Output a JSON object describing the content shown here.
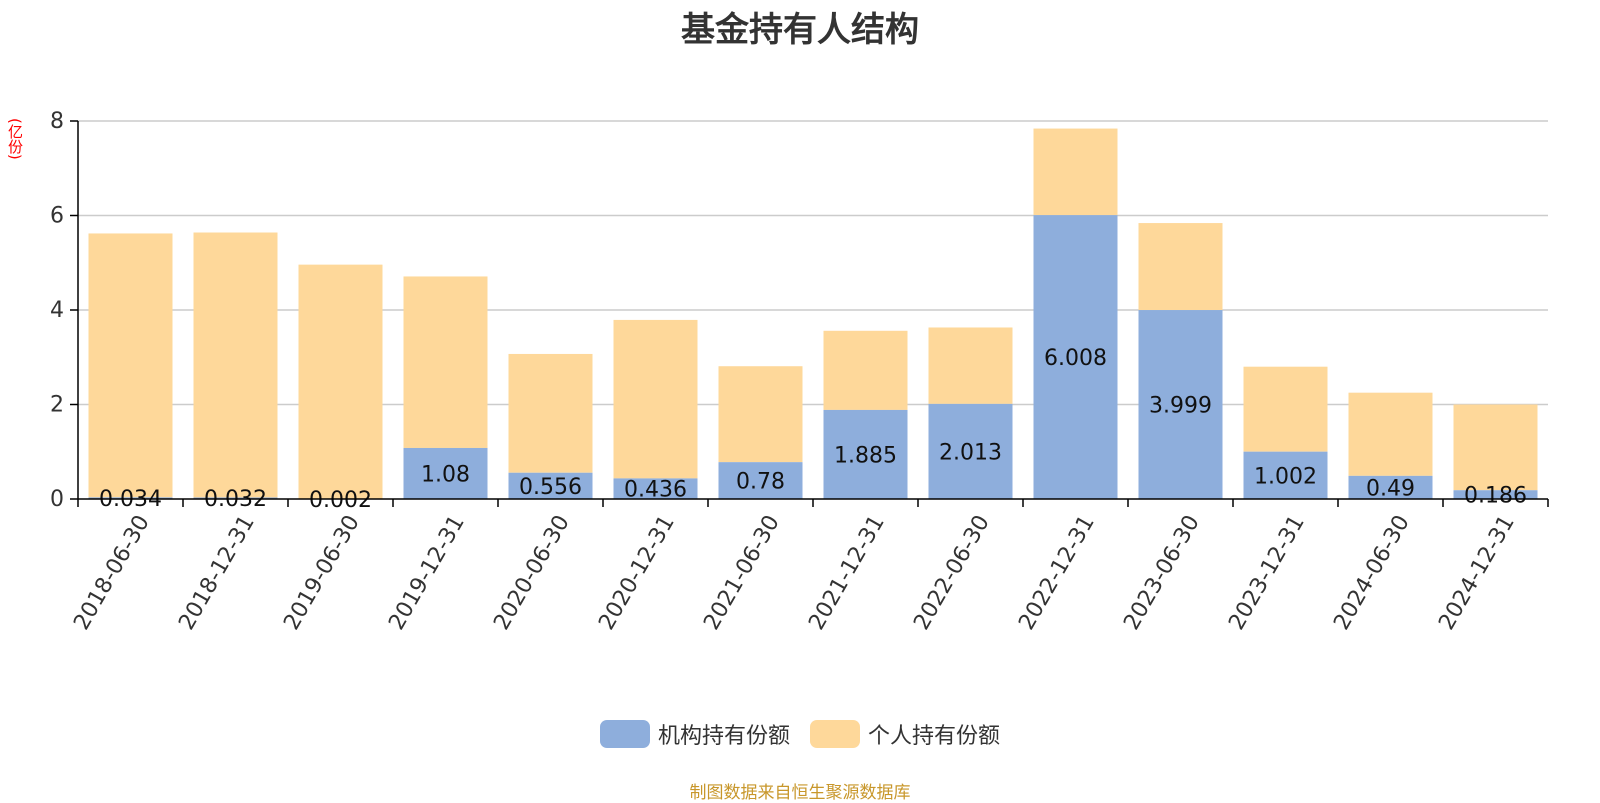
{
  "title": "基金持有人结构",
  "unit_label": "(亿份)",
  "source": "制图数据来自恒生聚源数据库",
  "colors": {
    "institutional": "#8eaedc",
    "individual": "#fed89a",
    "grid": "#cccccc",
    "axis": "#000000"
  },
  "chart_data": {
    "type": "bar",
    "stacked": true,
    "title": "基金持有人结构",
    "ylabel": "(亿份)",
    "ylim": [
      0,
      8
    ],
    "yticks": [
      "0",
      "2",
      "4",
      "6",
      "8"
    ],
    "grid": true,
    "legend_position": "bottom",
    "categories": [
      "2018-06-30",
      "2018-12-31",
      "2019-06-30",
      "2019-12-31",
      "2020-06-30",
      "2020-12-31",
      "2021-06-30",
      "2021-12-31",
      "2022-06-30",
      "2022-12-31",
      "2023-06-30",
      "2023-12-31",
      "2024-06-30",
      "2024-12-31"
    ],
    "series": [
      {
        "name": "机构持有份额",
        "values": [
          0.034,
          0.032,
          0.002,
          1.08,
          0.556,
          0.436,
          0.78,
          1.885,
          2.013,
          6.008,
          3.999,
          1.002,
          0.49,
          0.186
        ],
        "labels": [
          "0.034",
          "0.032",
          "0.002",
          "1.08",
          "0.556",
          "0.436",
          "0.78",
          "1.885",
          "2.013",
          "6.008",
          "3.999",
          "1.002",
          "0.49",
          "0.186"
        ]
      },
      {
        "name": "个人持有份额",
        "values": [
          5.586,
          5.608,
          4.958,
          3.63,
          2.514,
          3.354,
          2.03,
          1.675,
          1.617,
          1.832,
          1.841,
          1.798,
          1.76,
          1.814
        ]
      }
    ]
  }
}
